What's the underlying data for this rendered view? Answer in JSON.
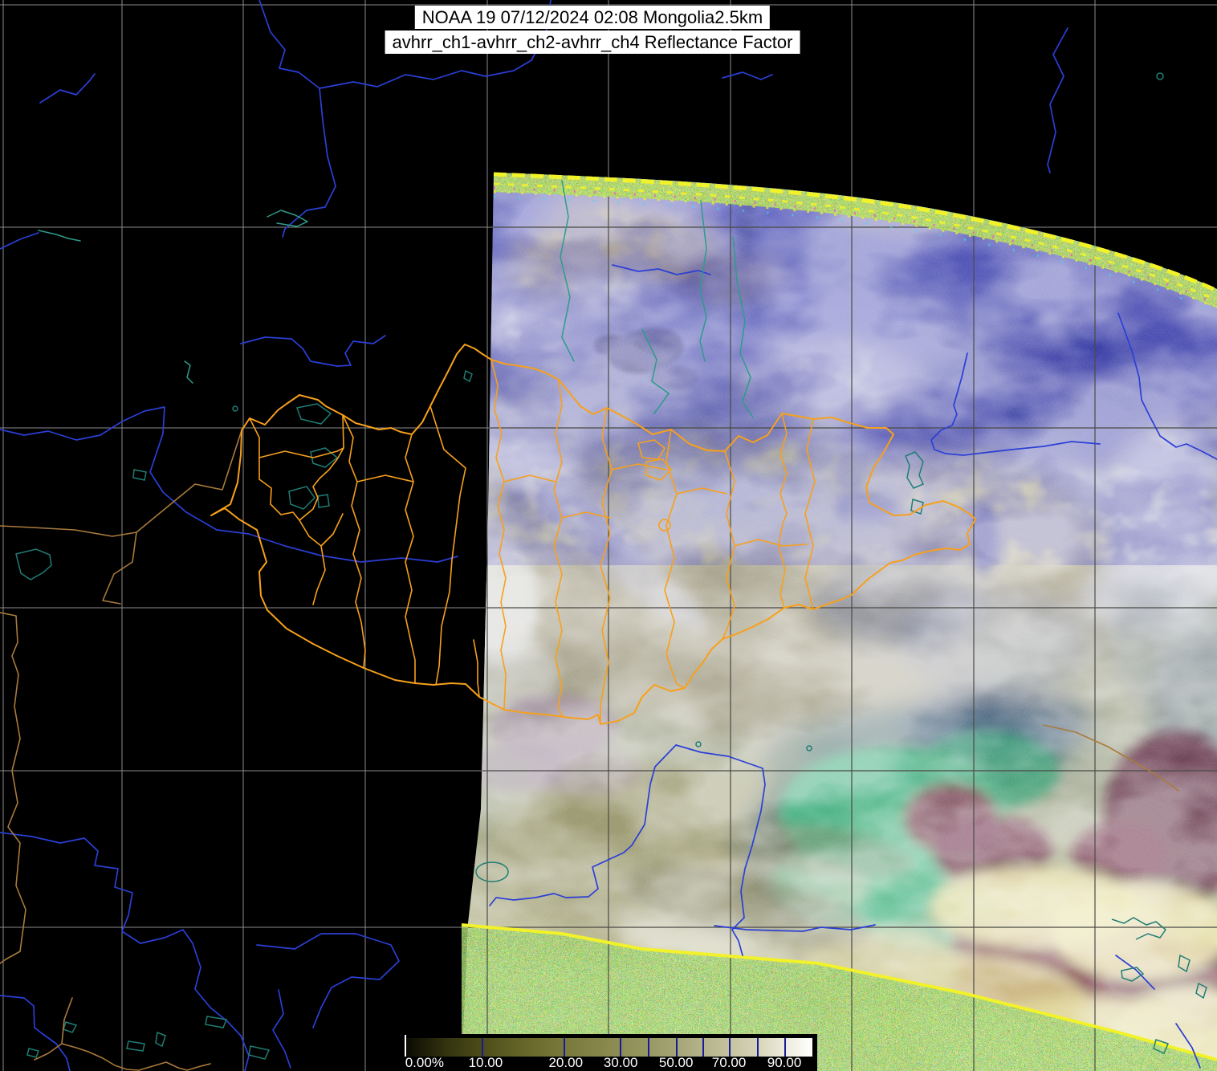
{
  "header": {
    "line1": "NOAA 19 07/12/2024 02:08 Mongolia2.5km",
    "line2": "avhrr_ch1-avhrr_ch2-avhrr_ch4 Reflectance Factor"
  },
  "colorbar": {
    "labels": [
      {
        "text": "0.00%",
        "pct": 4.7
      },
      {
        "text": "10.00",
        "pct": 19.7
      },
      {
        "text": "20.00",
        "pct": 39.4
      },
      {
        "text": "30.00",
        "pct": 52.9
      },
      {
        "text": "50.00",
        "pct": 66.5
      },
      {
        "text": "70.00",
        "pct": 79.5
      },
      {
        "text": "90.00",
        "pct": 93.1
      }
    ],
    "tick_pcts": [
      18.7,
      38.9,
      52.7,
      59.6,
      66.5,
      73.0,
      79.5,
      86.4,
      93.1
    ]
  },
  "theme": {
    "bg": "#000000",
    "grid": "#8d8d8d",
    "grid_dark": "#4a4a45",
    "orange": "#f7a01c",
    "tan": "#a97b3c",
    "blue": "#2b3fd6",
    "teal": "#2e9b8a",
    "lake": "#1f7d74",
    "yellow": "#f2f22a",
    "cb_tick": "#1a1a99",
    "title_bg": "#ffffff",
    "title_fg": "#000000"
  }
}
